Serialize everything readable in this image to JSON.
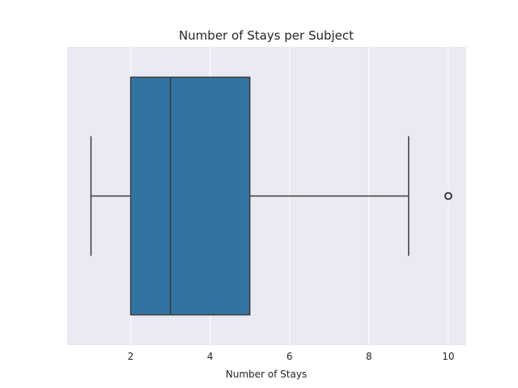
{
  "chart_data": {
    "type": "box",
    "title": "Number of Stays per Subject",
    "xlabel": "Number of Stays",
    "ylabel": "",
    "orientation": "horizontal",
    "xlim": [
      0.4,
      10.45
    ],
    "xticks": [
      2,
      4,
      6,
      8,
      10
    ],
    "grid": true,
    "legend": "none",
    "box": {
      "whisker_low": 1,
      "q1": 2,
      "median": 3,
      "q3": 5,
      "whisker_high": 9
    },
    "outliers": [
      10
    ],
    "colors": {
      "background": "#eaeaf2",
      "box_fill": "#3274a1",
      "line": "#3d3d3d",
      "grid": "#ffffff"
    }
  }
}
